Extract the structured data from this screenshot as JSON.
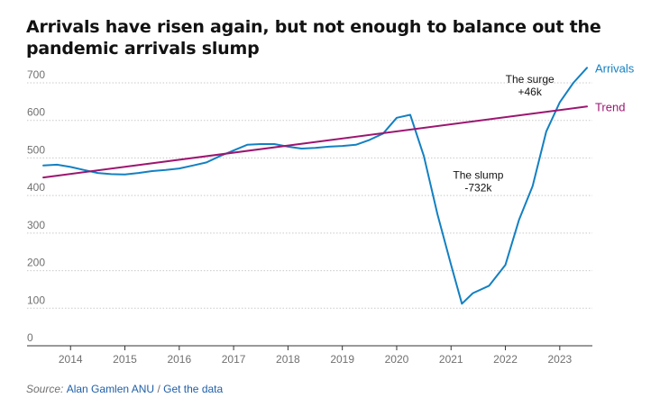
{
  "title": "Arrivals have risen again, but not enough to balance out the pandemic arrivals slump",
  "source": {
    "prefix": "Source:",
    "author": "Alan Gamlen ANU",
    "separator": "/",
    "link": "Get the data"
  },
  "chart_data": {
    "type": "line",
    "title": "Arrivals have risen again, but not enough to balance out the pandemic arrivals slump",
    "xlabel": "",
    "ylabel": "",
    "ylim": [
      0,
      700
    ],
    "yticks": [
      0,
      100,
      200,
      300,
      400,
      500,
      600,
      700
    ],
    "xlim": [
      2013.2,
      2023.6
    ],
    "xticks": [
      2014,
      2015,
      2016,
      2017,
      2018,
      2019,
      2020,
      2021,
      2022,
      2023
    ],
    "grid": true,
    "series": [
      {
        "name": "Arrivals",
        "color": "#1380c2",
        "x": [
          2013.5,
          2013.75,
          2014.0,
          2014.25,
          2014.5,
          2014.75,
          2015.0,
          2015.25,
          2015.5,
          2015.75,
          2016.0,
          2016.25,
          2016.5,
          2016.75,
          2017.0,
          2017.25,
          2017.5,
          2017.75,
          2018.0,
          2018.25,
          2018.5,
          2018.75,
          2019.0,
          2019.25,
          2019.5,
          2019.75,
          2020.0,
          2020.25,
          2020.5,
          2020.75,
          2021.0,
          2021.2,
          2021.4,
          2021.7,
          2022.0,
          2022.25,
          2022.5,
          2022.75,
          2023.0,
          2023.25,
          2023.5
        ],
        "values": [
          480,
          482,
          476,
          468,
          460,
          457,
          456,
          460,
          465,
          468,
          472,
          480,
          488,
          505,
          520,
          535,
          537,
          537,
          530,
          525,
          527,
          530,
          532,
          535,
          548,
          565,
          607,
          615,
          505,
          350,
          215,
          112,
          140,
          160,
          215,
          335,
          425,
          570,
          648,
          700,
          740
        ]
      },
      {
        "name": "Trend",
        "color": "#9c1670",
        "x": [
          2013.5,
          2023.5
        ],
        "values": [
          448,
          637
        ]
      }
    ],
    "legend": "right, at line ends",
    "annotations": [
      {
        "lines": [
          "The slump",
          "-732k"
        ],
        "x": 2021.5,
        "y": 445
      },
      {
        "lines": [
          "The surge",
          "+46k"
        ],
        "x": 2022.45,
        "y": 700
      }
    ]
  }
}
